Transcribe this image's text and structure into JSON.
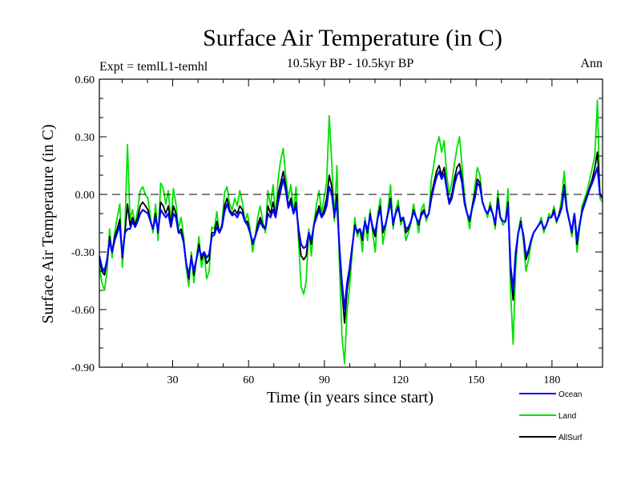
{
  "chart_data": {
    "type": "line",
    "title": "Surface Air Temperature (in C)",
    "subtitle_left": "Expt = temlL1-temhl",
    "subtitle_center": "10.5kyr BP - 10.5kyr BP",
    "subtitle_right": "Ann",
    "xlabel": "Time (in years since start)",
    "ylabel": "Surface Air Temperature (in C)",
    "xlim": [
      1,
      200
    ],
    "ylim": [
      -0.9,
      0.6
    ],
    "xticks": [
      30,
      60,
      90,
      120,
      150,
      180
    ],
    "yticks": [
      -0.9,
      -0.6,
      -0.3,
      0.0,
      0.3,
      0.6
    ],
    "ytick_labels": [
      "-0.90",
      "-0.60",
      "-0.30",
      "0.00",
      "0.30",
      "0.60"
    ],
    "reference_line": 0.0,
    "legend_position": "bottom-right",
    "series": [
      {
        "name": "Land",
        "color": "#00e000",
        "values": [
          -0.38,
          -0.46,
          -0.5,
          -0.4,
          -0.18,
          -0.33,
          -0.2,
          -0.12,
          -0.05,
          -0.38,
          -0.18,
          0.26,
          -0.13,
          -0.08,
          -0.16,
          -0.08,
          0.02,
          0.04,
          0.0,
          -0.02,
          -0.12,
          -0.2,
          -0.05,
          -0.24,
          0.06,
          0.03,
          -0.05,
          0.02,
          -0.15,
          0.03,
          -0.05,
          -0.18,
          -0.12,
          -0.22,
          -0.38,
          -0.48,
          -0.3,
          -0.46,
          -0.34,
          -0.22,
          -0.38,
          -0.3,
          -0.44,
          -0.4,
          -0.17,
          -0.18,
          -0.09,
          -0.2,
          -0.16,
          0.01,
          0.04,
          -0.05,
          -0.08,
          -0.02,
          -0.06,
          0.02,
          -0.04,
          -0.14,
          -0.1,
          -0.18,
          -0.3,
          -0.22,
          -0.12,
          -0.06,
          -0.14,
          -0.2,
          0.02,
          -0.06,
          0.05,
          -0.12,
          0.08,
          0.18,
          0.24,
          0.09,
          -0.02,
          0.05,
          -0.1,
          0.04,
          -0.24,
          -0.48,
          -0.52,
          -0.45,
          -0.18,
          -0.32,
          -0.15,
          -0.05,
          0.02,
          -0.1,
          -0.02,
          0.07,
          0.41,
          0.16,
          -0.14,
          0.15,
          -0.38,
          -0.74,
          -0.88,
          -0.6,
          -0.48,
          -0.3,
          -0.12,
          -0.22,
          -0.18,
          -0.3,
          -0.12,
          -0.24,
          -0.08,
          -0.2,
          -0.3,
          -0.1,
          -0.02,
          -0.26,
          -0.18,
          -0.08,
          0.05,
          -0.18,
          -0.08,
          -0.03,
          -0.16,
          -0.12,
          -0.24,
          -0.2,
          -0.15,
          -0.05,
          -0.12,
          -0.2,
          -0.08,
          -0.05,
          -0.14,
          -0.1,
          0.08,
          0.16,
          0.25,
          0.3,
          0.22,
          0.28,
          0.1,
          0.0,
          0.06,
          0.16,
          0.24,
          0.3,
          0.15,
          -0.02,
          -0.1,
          -0.18,
          -0.06,
          0.04,
          0.14,
          0.1,
          -0.04,
          -0.08,
          -0.12,
          -0.04,
          -0.1,
          -0.18,
          0.02,
          -0.12,
          -0.16,
          -0.14,
          0.03,
          -0.5,
          -0.78,
          -0.38,
          -0.2,
          -0.12,
          -0.24,
          -0.4,
          -0.34,
          -0.26,
          -0.2,
          -0.18,
          -0.16,
          -0.12,
          -0.2,
          -0.16,
          -0.1,
          -0.12,
          -0.06,
          -0.15,
          -0.1,
          -0.02,
          0.12,
          -0.06,
          -0.14,
          -0.22,
          -0.1,
          -0.3,
          -0.18,
          -0.06,
          -0.02,
          0.02,
          0.08,
          0.14,
          0.2,
          0.49,
          -0.02,
          -0.04
        ]
      },
      {
        "name": "AllSurf",
        "color": "#000000",
        "values": [
          -0.34,
          -0.4,
          -0.42,
          -0.35,
          -0.22,
          -0.3,
          -0.22,
          -0.18,
          -0.13,
          -0.33,
          -0.2,
          -0.05,
          -0.16,
          -0.12,
          -0.16,
          -0.12,
          -0.06,
          -0.04,
          -0.06,
          -0.08,
          -0.14,
          -0.18,
          -0.1,
          -0.2,
          -0.04,
          -0.06,
          -0.1,
          -0.06,
          -0.16,
          -0.06,
          -0.1,
          -0.2,
          -0.18,
          -0.24,
          -0.36,
          -0.44,
          -0.32,
          -0.42,
          -0.34,
          -0.26,
          -0.34,
          -0.3,
          -0.36,
          -0.34,
          -0.2,
          -0.2,
          -0.14,
          -0.2,
          -0.16,
          -0.06,
          -0.02,
          -0.08,
          -0.1,
          -0.08,
          -0.1,
          -0.06,
          -0.08,
          -0.14,
          -0.14,
          -0.2,
          -0.26,
          -0.22,
          -0.16,
          -0.12,
          -0.16,
          -0.18,
          -0.06,
          -0.1,
          -0.04,
          -0.12,
          0.0,
          0.06,
          0.12,
          0.04,
          -0.06,
          -0.02,
          -0.1,
          -0.04,
          -0.2,
          -0.32,
          -0.34,
          -0.32,
          -0.2,
          -0.26,
          -0.16,
          -0.1,
          -0.06,
          -0.12,
          -0.08,
          -0.02,
          0.1,
          0.04,
          -0.12,
          0.0,
          -0.3,
          -0.5,
          -0.67,
          -0.5,
          -0.4,
          -0.28,
          -0.16,
          -0.2,
          -0.18,
          -0.24,
          -0.14,
          -0.2,
          -0.1,
          -0.18,
          -0.22,
          -0.12,
          -0.06,
          -0.2,
          -0.16,
          -0.1,
          -0.02,
          -0.16,
          -0.1,
          -0.06,
          -0.14,
          -0.12,
          -0.2,
          -0.18,
          -0.14,
          -0.08,
          -0.12,
          -0.16,
          -0.1,
          -0.08,
          -0.12,
          -0.1,
          0.0,
          0.06,
          0.12,
          0.15,
          0.1,
          0.14,
          0.04,
          -0.04,
          0.0,
          0.08,
          0.14,
          0.16,
          0.08,
          -0.04,
          -0.1,
          -0.14,
          -0.06,
          0.0,
          0.08,
          0.06,
          -0.04,
          -0.08,
          -0.1,
          -0.06,
          -0.1,
          -0.16,
          -0.02,
          -0.12,
          -0.14,
          -0.14,
          -0.04,
          -0.4,
          -0.55,
          -0.32,
          -0.2,
          -0.14,
          -0.22,
          -0.34,
          -0.3,
          -0.24,
          -0.2,
          -0.18,
          -0.16,
          -0.14,
          -0.18,
          -0.16,
          -0.12,
          -0.12,
          -0.08,
          -0.14,
          -0.1,
          -0.06,
          0.05,
          -0.08,
          -0.14,
          -0.2,
          -0.1,
          -0.26,
          -0.16,
          -0.08,
          -0.04,
          0.0,
          0.04,
          0.08,
          0.14,
          0.22,
          0.0,
          -0.02
        ]
      },
      {
        "name": "Ocean",
        "color": "#0000ff",
        "values": [
          -0.32,
          -0.38,
          -0.4,
          -0.34,
          -0.24,
          -0.3,
          -0.24,
          -0.2,
          -0.16,
          -0.32,
          -0.2,
          -0.18,
          -0.18,
          -0.14,
          -0.17,
          -0.14,
          -0.1,
          -0.08,
          -0.09,
          -0.1,
          -0.14,
          -0.18,
          -0.12,
          -0.19,
          -0.08,
          -0.1,
          -0.12,
          -0.1,
          -0.17,
          -0.1,
          -0.12,
          -0.2,
          -0.2,
          -0.25,
          -0.36,
          -0.42,
          -0.33,
          -0.4,
          -0.34,
          -0.28,
          -0.32,
          -0.3,
          -0.33,
          -0.31,
          -0.22,
          -0.21,
          -0.17,
          -0.2,
          -0.17,
          -0.09,
          -0.05,
          -0.09,
          -0.11,
          -0.1,
          -0.12,
          -0.09,
          -0.1,
          -0.14,
          -0.16,
          -0.2,
          -0.25,
          -0.22,
          -0.18,
          -0.14,
          -0.17,
          -0.18,
          -0.1,
          -0.12,
          -0.08,
          -0.12,
          -0.04,
          0.02,
          0.08,
          0.02,
          -0.07,
          -0.04,
          -0.1,
          -0.06,
          -0.18,
          -0.26,
          -0.28,
          -0.27,
          -0.2,
          -0.24,
          -0.16,
          -0.12,
          -0.08,
          -0.12,
          -0.1,
          -0.06,
          0.04,
          0.0,
          -0.11,
          -0.04,
          -0.28,
          -0.46,
          -0.6,
          -0.46,
          -0.38,
          -0.27,
          -0.17,
          -0.19,
          -0.18,
          -0.22,
          -0.14,
          -0.19,
          -0.11,
          -0.17,
          -0.2,
          -0.12,
          -0.08,
          -0.18,
          -0.16,
          -0.1,
          -0.04,
          -0.15,
          -0.1,
          -0.07,
          -0.13,
          -0.12,
          -0.18,
          -0.17,
          -0.14,
          -0.09,
          -0.12,
          -0.15,
          -0.11,
          -0.09,
          -0.12,
          -0.1,
          -0.02,
          0.04,
          0.09,
          0.12,
          0.08,
          0.11,
          0.03,
          -0.05,
          -0.02,
          0.05,
          0.1,
          0.12,
          0.06,
          -0.05,
          -0.1,
          -0.13,
          -0.07,
          -0.02,
          0.06,
          0.04,
          -0.04,
          -0.08,
          -0.1,
          -0.07,
          -0.1,
          -0.15,
          -0.04,
          -0.12,
          -0.14,
          -0.14,
          -0.06,
          -0.37,
          -0.5,
          -0.3,
          -0.2,
          -0.15,
          -0.21,
          -0.32,
          -0.29,
          -0.24,
          -0.2,
          -0.18,
          -0.16,
          -0.14,
          -0.18,
          -0.16,
          -0.12,
          -0.12,
          -0.09,
          -0.14,
          -0.11,
          -0.07,
          0.03,
          -0.08,
          -0.14,
          -0.19,
          -0.1,
          -0.24,
          -0.16,
          -0.09,
          -0.05,
          -0.01,
          0.03,
          0.06,
          0.1,
          0.14,
          0.0,
          -0.02
        ]
      }
    ],
    "legend_order": [
      "Ocean",
      "Land",
      "AllSurf"
    ]
  }
}
